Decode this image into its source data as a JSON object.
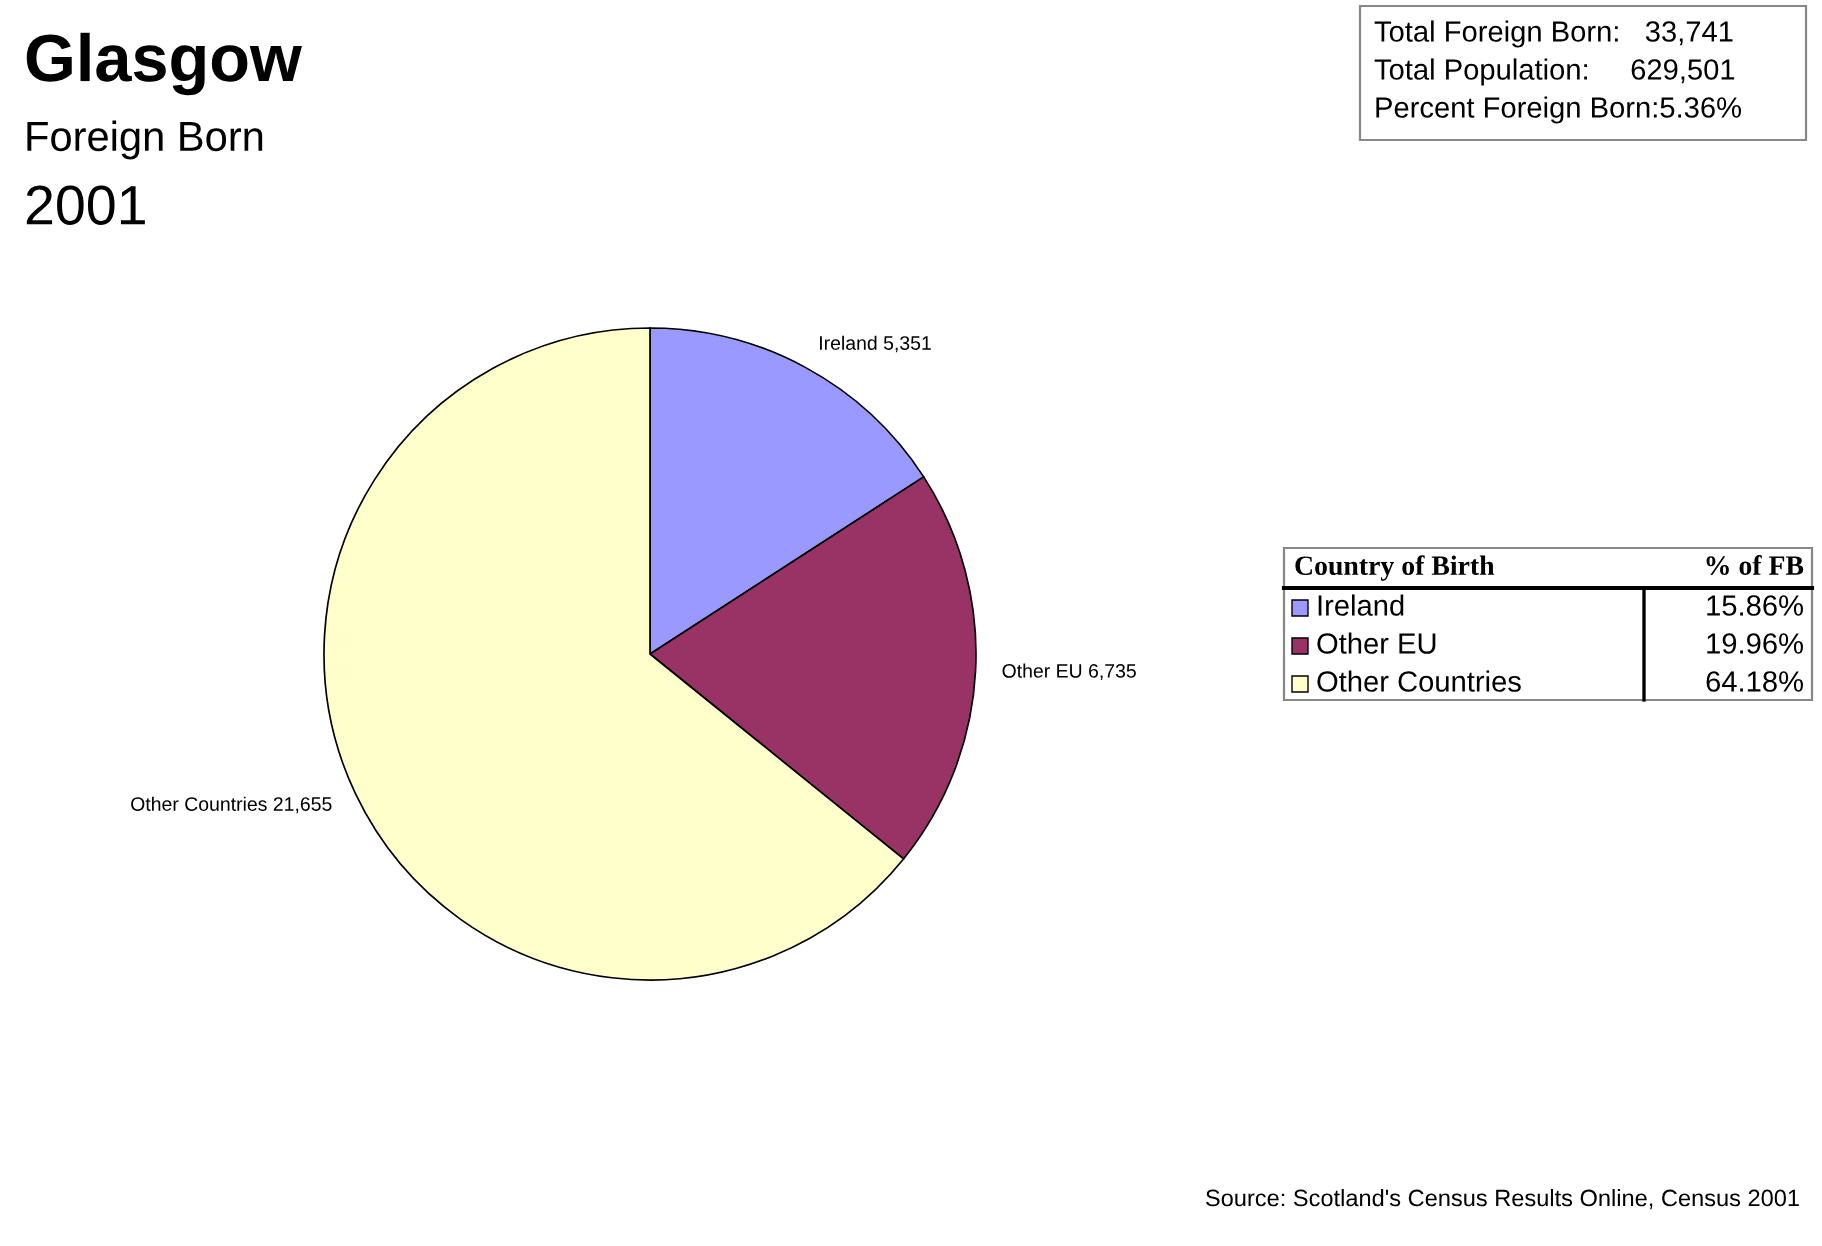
{
  "chart_data": {
    "type": "pie",
    "title": "Glasgow",
    "subtitle": "Foreign Born",
    "categories": [
      "Ireland",
      "Other EU",
      "Other Countries"
    ],
    "values": [
      5351,
      6735,
      21655
    ],
    "colors": [
      "#9999ff",
      "#993366",
      "#ffffcc"
    ],
    "value_labels": [
      "Ireland 5,351",
      "Other EU 6,735",
      "Other Countries 21,655"
    ],
    "legend": "right",
    "legend_title": "Country of Birth",
    "annotations": [
      "2001",
      "Total Foreign Born:   33,741",
      "Total Population:     629,501",
      "Percent Foreign Born:5.36%",
      "% of FB",
      "15.86%",
      "19.96%",
      "64.18%",
      "Source: Scotland's Census Results Online, Census 2001"
    ]
  }
}
